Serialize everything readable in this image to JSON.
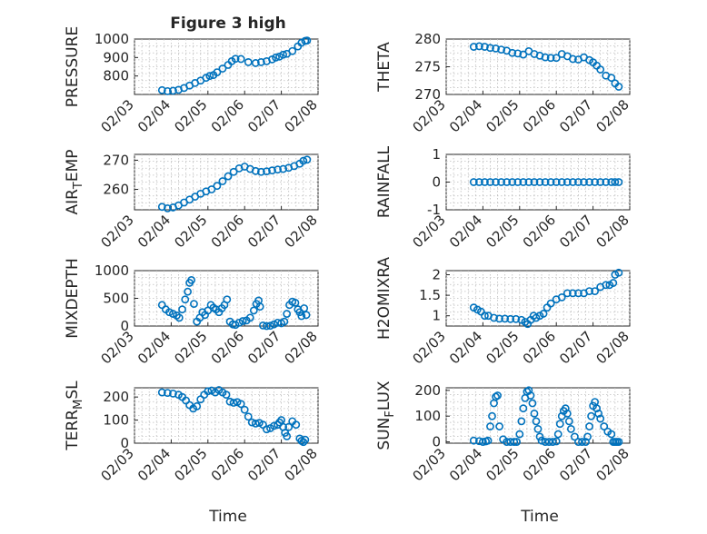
{
  "figure_title": "Figure 3 high",
  "xlabel": "Time",
  "colors": {
    "marker": "#0072bd",
    "axis": "#262626",
    "grid": "#bdbdbd"
  },
  "chart_data": [
    {
      "type": "scatter",
      "ylabel": "PRESSURE",
      "title": "Figure 3 high",
      "xlim": [
        3,
        8
      ],
      "ylim": [
        700,
        1000
      ],
      "yticks": [
        800,
        900,
        1000
      ],
      "grid": true,
      "xticks": [
        "02/03",
        "02/04",
        "02/05",
        "02/06",
        "02/07",
        "02/08"
      ],
      "x": [
        3.75,
        3.9,
        4.05,
        4.2,
        4.35,
        4.5,
        4.65,
        4.8,
        4.95,
        5.05,
        5.15,
        5.25,
        5.4,
        5.55,
        5.65,
        5.75,
        5.9,
        6.1,
        6.3,
        6.45,
        6.6,
        6.75,
        6.85,
        6.95,
        7.05,
        7.15,
        7.3,
        7.45,
        7.55,
        7.65,
        7.7
      ],
      "y": [
        723,
        718,
        720,
        725,
        735,
        748,
        762,
        775,
        790,
        800,
        805,
        820,
        840,
        860,
        880,
        893,
        892,
        875,
        870,
        875,
        880,
        890,
        900,
        905,
        915,
        920,
        935,
        960,
        980,
        990,
        992
      ]
    },
    {
      "type": "scatter",
      "ylabel": "THETA",
      "xlim": [
        3,
        8
      ],
      "ylim": [
        270,
        280
      ],
      "yticks": [
        270,
        275,
        280
      ],
      "grid": true,
      "xticks": [
        "02/03",
        "02/04",
        "02/05",
        "02/06",
        "02/07",
        "02/08"
      ],
      "x": [
        3.75,
        3.9,
        4.05,
        4.2,
        4.35,
        4.5,
        4.65,
        4.8,
        4.95,
        5.1,
        5.25,
        5.4,
        5.55,
        5.7,
        5.85,
        6.0,
        6.15,
        6.3,
        6.45,
        6.6,
        6.75,
        6.9,
        7.0,
        7.1,
        7.2,
        7.35,
        7.5,
        7.6,
        7.7
      ],
      "y": [
        278.6,
        278.7,
        278.6,
        278.4,
        278.3,
        278.1,
        277.9,
        277.5,
        277.4,
        277.2,
        277.8,
        277.3,
        277.0,
        276.7,
        276.6,
        276.6,
        277.3,
        276.9,
        276.4,
        276.3,
        276.7,
        276.2,
        275.8,
        275.2,
        274.5,
        273.4,
        273.0,
        272.0,
        271.4
      ]
    },
    {
      "type": "scatter",
      "ylabel": "AIR_TEMP",
      "xlim": [
        3,
        8
      ],
      "ylim": [
        253,
        272
      ],
      "yticks": [
        260,
        270
      ],
      "grid": true,
      "xticks": [
        "02/03",
        "02/04",
        "02/05",
        "02/06",
        "02/07",
        "02/08"
      ],
      "x": [
        3.75,
        3.9,
        4.05,
        4.2,
        4.35,
        4.5,
        4.65,
        4.8,
        4.95,
        5.1,
        5.25,
        5.4,
        5.55,
        5.7,
        5.85,
        6.0,
        6.15,
        6.3,
        6.45,
        6.6,
        6.75,
        6.9,
        7.05,
        7.2,
        7.35,
        7.5,
        7.6,
        7.7
      ],
      "y": [
        254.0,
        253.5,
        253.8,
        254.5,
        255.5,
        256.5,
        257.5,
        258.5,
        259.3,
        260.0,
        261.2,
        262.8,
        264.5,
        266.0,
        267.2,
        267.8,
        267.0,
        266.3,
        266.0,
        266.2,
        266.5,
        266.8,
        267.0,
        267.4,
        268.0,
        268.8,
        269.8,
        270.2
      ]
    },
    {
      "type": "scatter",
      "ylabel": "RAINFALL",
      "xlim": [
        3,
        8
      ],
      "ylim": [
        -1,
        1
      ],
      "yticks": [
        -1,
        0,
        1
      ],
      "grid": true,
      "xticks": [
        "02/03",
        "02/04",
        "02/05",
        "02/06",
        "02/07",
        "02/08"
      ],
      "x": [
        3.75,
        3.9,
        4.05,
        4.2,
        4.35,
        4.5,
        4.65,
        4.8,
        4.95,
        5.1,
        5.25,
        5.4,
        5.55,
        5.7,
        5.85,
        6.0,
        6.15,
        6.3,
        6.45,
        6.6,
        6.75,
        6.9,
        7.05,
        7.2,
        7.35,
        7.5,
        7.6,
        7.7
      ],
      "y": [
        0,
        0,
        0,
        0,
        0,
        0,
        0,
        0,
        0,
        0,
        0,
        0,
        0,
        0,
        0,
        0,
        0,
        0,
        0,
        0,
        0,
        0,
        0,
        0,
        0,
        0,
        0,
        0
      ]
    },
    {
      "type": "scatter",
      "ylabel": "MIXDEPTH",
      "xlim": [
        3,
        8
      ],
      "ylim": [
        0,
        1000
      ],
      "yticks": [
        0,
        500,
        1000
      ],
      "grid": true,
      "xticks": [
        "02/03",
        "02/04",
        "02/05",
        "02/06",
        "02/07",
        "02/08"
      ],
      "x": [
        3.75,
        3.85,
        3.95,
        4.05,
        4.15,
        4.22,
        4.3,
        4.38,
        4.45,
        4.5,
        4.55,
        4.62,
        4.7,
        4.78,
        4.85,
        4.92,
        5.0,
        5.08,
        5.15,
        5.22,
        5.3,
        5.38,
        5.45,
        5.52,
        5.6,
        5.68,
        5.75,
        5.85,
        5.95,
        6.05,
        6.15,
        6.25,
        6.32,
        6.38,
        6.42,
        6.5,
        6.6,
        6.7,
        6.8,
        6.9,
        7.0,
        7.08,
        7.15,
        7.22,
        7.3,
        7.38,
        7.45,
        7.5,
        7.55,
        7.62,
        7.68
      ],
      "y": [
        380,
        300,
        250,
        220,
        190,
        150,
        300,
        480,
        620,
        780,
        830,
        400,
        80,
        150,
        250,
        200,
        280,
        380,
        330,
        300,
        250,
        320,
        380,
        480,
        80,
        30,
        20,
        60,
        90,
        100,
        150,
        280,
        400,
        460,
        350,
        10,
        0,
        5,
        30,
        60,
        50,
        80,
        220,
        380,
        440,
        420,
        300,
        250,
        180,
        320,
        200
      ]
    },
    {
      "type": "scatter",
      "ylabel": "H2OMIXRA",
      "xlim": [
        3,
        8
      ],
      "ylim": [
        0.75,
        2.1
      ],
      "yticks": [
        1,
        1.5,
        2
      ],
      "grid": true,
      "xticks": [
        "02/03",
        "02/04",
        "02/05",
        "02/06",
        "02/07",
        "02/08"
      ],
      "x": [
        3.75,
        3.85,
        3.95,
        4.05,
        4.15,
        4.3,
        4.45,
        4.6,
        4.75,
        4.9,
        5.05,
        5.15,
        5.22,
        5.3,
        5.38,
        5.45,
        5.55,
        5.65,
        5.75,
        5.85,
        6.0,
        6.15,
        6.3,
        6.45,
        6.6,
        6.75,
        6.9,
        7.05,
        7.2,
        7.35,
        7.45,
        7.55,
        7.6,
        7.7
      ],
      "y": [
        1.2,
        1.15,
        1.1,
        1.0,
        1.0,
        0.95,
        0.93,
        0.93,
        0.92,
        0.92,
        0.9,
        0.85,
        0.8,
        0.9,
        1.0,
        0.95,
        1.0,
        1.05,
        1.2,
        1.3,
        1.4,
        1.45,
        1.55,
        1.55,
        1.55,
        1.55,
        1.6,
        1.6,
        1.7,
        1.75,
        1.75,
        1.8,
        2.0,
        2.05
      ]
    },
    {
      "type": "scatter",
      "ylabel": "TERR_MSL",
      "xlim": [
        3,
        8
      ],
      "ylim": [
        0,
        240
      ],
      "yticks": [
        0,
        100,
        200
      ],
      "grid": true,
      "xticks": [
        "02/03",
        "02/04",
        "02/05",
        "02/06",
        "02/07",
        "02/08"
      ],
      "x": [
        3.75,
        3.9,
        4.05,
        4.2,
        4.3,
        4.4,
        4.5,
        4.6,
        4.7,
        4.8,
        4.9,
        5.0,
        5.1,
        5.2,
        5.3,
        5.4,
        5.5,
        5.6,
        5.7,
        5.8,
        5.9,
        6.0,
        6.1,
        6.2,
        6.3,
        6.4,
        6.5,
        6.6,
        6.7,
        6.8,
        6.9,
        6.95,
        7.0,
        7.05,
        7.1,
        7.15,
        7.2,
        7.3,
        7.4,
        7.5,
        7.55,
        7.6,
        7.65
      ],
      "y": [
        220,
        218,
        215,
        210,
        200,
        185,
        165,
        150,
        160,
        190,
        210,
        225,
        228,
        220,
        230,
        220,
        210,
        180,
        175,
        178,
        170,
        145,
        115,
        90,
        85,
        88,
        80,
        60,
        65,
        75,
        80,
        90,
        100,
        70,
        45,
        30,
        70,
        95,
        80,
        20,
        10,
        5,
        15
      ]
    },
    {
      "type": "scatter",
      "ylabel": "SUN_FLUX",
      "xlim": [
        3,
        8
      ],
      "ylim": [
        -5,
        210
      ],
      "yticks": [
        0,
        100,
        200
      ],
      "grid": true,
      "xticks": [
        "02/03",
        "02/04",
        "02/05",
        "02/06",
        "02/07",
        "02/08"
      ],
      "x": [
        3.75,
        3.9,
        4.0,
        4.08,
        4.14,
        4.2,
        4.25,
        4.3,
        4.35,
        4.4,
        4.45,
        4.55,
        4.65,
        4.75,
        4.85,
        4.92,
        5.0,
        5.05,
        5.1,
        5.15,
        5.2,
        5.25,
        5.3,
        5.35,
        5.4,
        5.45,
        5.5,
        5.55,
        5.6,
        5.7,
        5.8,
        5.9,
        6.0,
        6.05,
        6.1,
        6.15,
        6.2,
        6.25,
        6.3,
        6.35,
        6.4,
        6.5,
        6.6,
        6.7,
        6.8,
        6.85,
        6.9,
        6.95,
        7.0,
        7.05,
        7.1,
        7.15,
        7.2,
        7.3,
        7.4,
        7.5,
        7.55,
        7.6,
        7.65,
        7.7
      ],
      "y": [
        5,
        3,
        0,
        2,
        5,
        60,
        100,
        150,
        175,
        180,
        60,
        10,
        0,
        0,
        0,
        0,
        30,
        80,
        130,
        170,
        195,
        200,
        180,
        150,
        110,
        80,
        50,
        20,
        5,
        0,
        0,
        0,
        2,
        30,
        70,
        100,
        120,
        130,
        110,
        80,
        50,
        20,
        0,
        0,
        0,
        20,
        60,
        100,
        140,
        155,
        130,
        110,
        90,
        60,
        40,
        30,
        0,
        0,
        0,
        0
      ]
    }
  ]
}
